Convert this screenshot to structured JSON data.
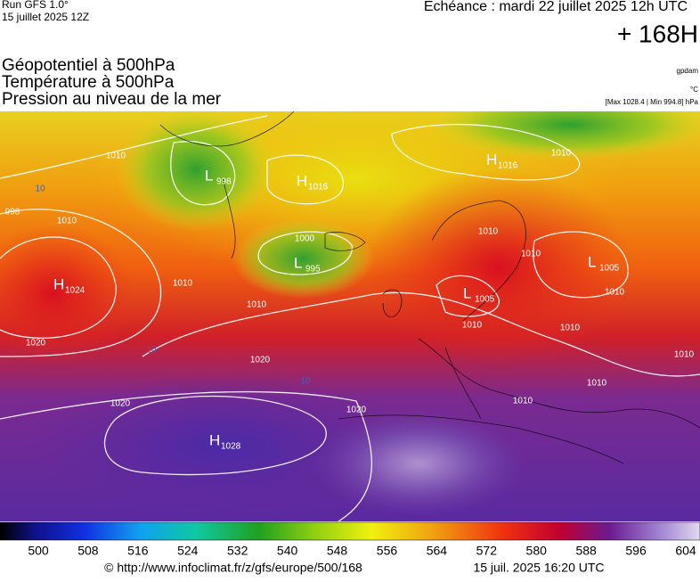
{
  "header": {
    "run": "Run GFS 1.0°",
    "run_date": "15 juillet 2025 12Z",
    "valid": "Echéance : mardi 22 juillet 2025 12h UTC",
    "lead": "+ 168H"
  },
  "layers": [
    "Géopotentiel à 500hPa",
    "Température à 500hPa",
    "Pression au niveau de la mer"
  ],
  "units": {
    "geopotential": "gpdam",
    "temperature": "°C",
    "pressure": "[Max 1028.4 | Min 994.8] hPa"
  },
  "centers": [
    {
      "letter": "H",
      "value": 1024
    },
    {
      "letter": "L",
      "value": 998
    },
    {
      "letter": "H",
      "value": 1016
    },
    {
      "letter": "L",
      "value": 995
    },
    {
      "letter": "H",
      "value": 1016
    },
    {
      "letter": "L",
      "value": 1005
    },
    {
      "letter": "L",
      "value": 1005
    },
    {
      "letter": "H",
      "value": 1028
    }
  ],
  "isobar_labels": [
    1010,
    1010,
    1010,
    1010,
    1010,
    1010,
    1010,
    1010,
    1010,
    1010,
    1010,
    1010,
    1010,
    1020,
    1020,
    1020,
    1020,
    1000,
    998
  ],
  "temperature_labels": [
    10,
    10,
    10
  ],
  "colorbar": {
    "labels": [
      500,
      508,
      516,
      524,
      532,
      540,
      548,
      556,
      564,
      572,
      580,
      588,
      596,
      604
    ]
  },
  "footer": {
    "source": "© http://www.infoclimat.fr/z/gfs/europe/500/168",
    "generated": "15 juil. 2025 16:20 UTC"
  }
}
